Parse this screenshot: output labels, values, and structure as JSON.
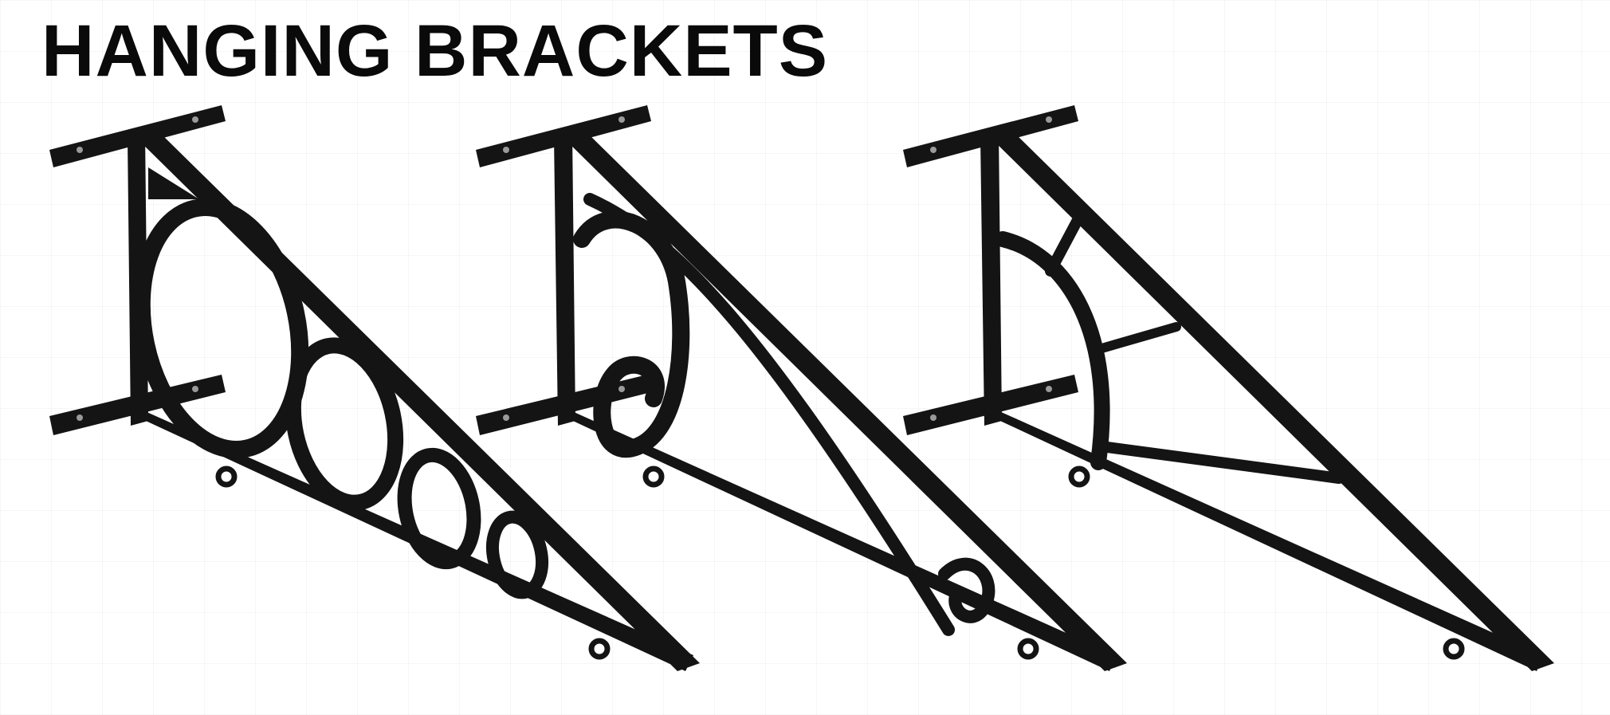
{
  "title": "HANGING BRACKETS",
  "brackets": [
    {
      "name": "circles-bracket",
      "style": "graduated-circles",
      "color": "#141414"
    },
    {
      "name": "scroll-bracket",
      "style": "scroll",
      "color": "#141414"
    },
    {
      "name": "fan-bracket",
      "style": "arc-with-spokes",
      "color": "#141414"
    }
  ]
}
